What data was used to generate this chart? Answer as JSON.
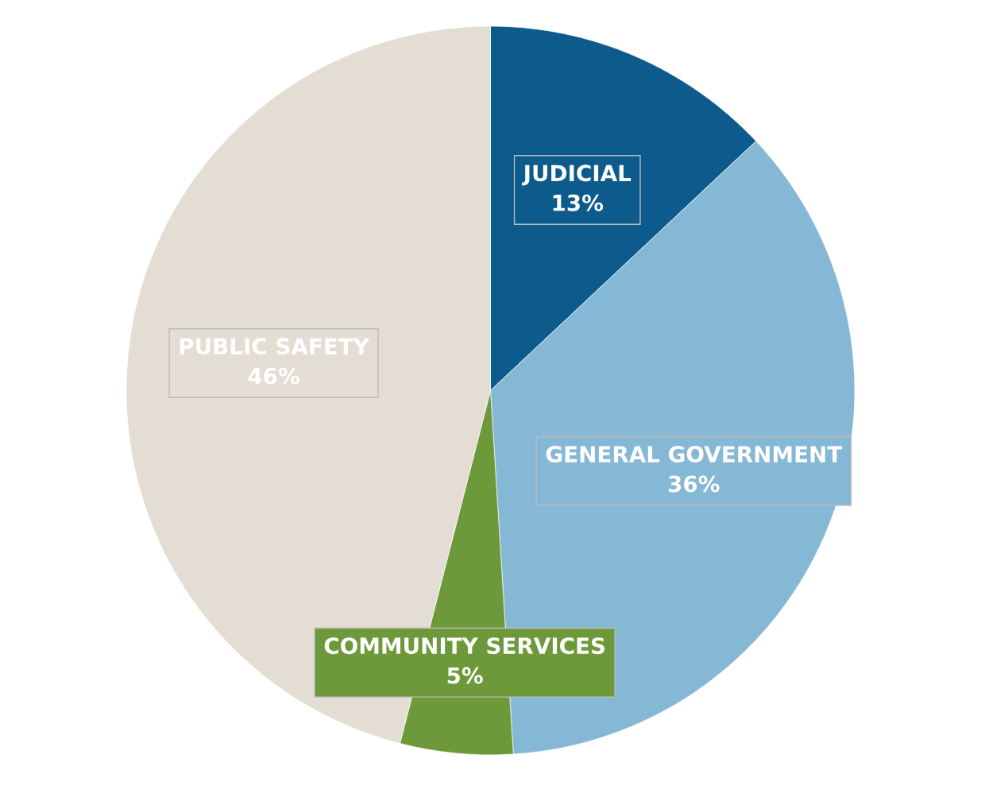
{
  "chart_data": {
    "type": "pie",
    "categories": [
      "JUDICIAL",
      "GENERAL GOVERNMENT",
      "COMMUNITY SERVICES",
      "PUBLIC SAFETY"
    ],
    "values": [
      13,
      36,
      5,
      46
    ],
    "value_labels": [
      "13%",
      "36%",
      "5%",
      "46%"
    ],
    "colors": [
      "#0d5a8c",
      "#85b8d5",
      "#6e993a",
      "#e3ddd4"
    ]
  }
}
